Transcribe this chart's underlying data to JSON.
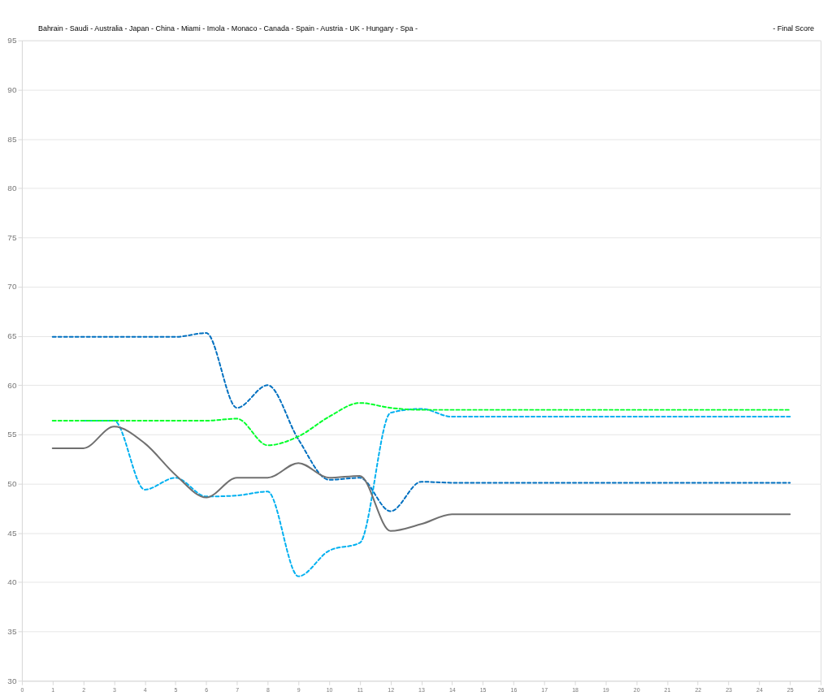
{
  "chart_data": {
    "type": "line",
    "annotations": [
      "Bahrain - Saudi - Australia -  Japan  -  China  -  Miami  -  Imola  - Monaco - Canada - Spain -   Austria    -  UK  -  Hungary  -  Spa  -",
      "- Final Score"
    ],
    "x": [
      1,
      2,
      3,
      4,
      5,
      6,
      7,
      8,
      9,
      10,
      11,
      12,
      13,
      14,
      15,
      16,
      17,
      18,
      19,
      20,
      21,
      22,
      23,
      24,
      25
    ],
    "series": [
      {
        "color": "#0070c0",
        "line_style": "dashed",
        "values": [
          64.9,
          64.9,
          64.9,
          64.9,
          64.9,
          65.3,
          57.7,
          60.0,
          54.5,
          50.4,
          50.6,
          47.2,
          50.2,
          50.1,
          50.1,
          50.1,
          50.1,
          50.1,
          50.1,
          50.1,
          50.1,
          50.1,
          50.1,
          50.1,
          50.1
        ]
      },
      {
        "color": "#00b0f0",
        "line_style": "dashed",
        "values": [
          null,
          56.4,
          56.4,
          49.4,
          50.6,
          48.7,
          48.8,
          49.2,
          40.6,
          43.2,
          44.0,
          57.2,
          57.6,
          56.8,
          56.8,
          56.8,
          56.8,
          56.8,
          56.8,
          56.8,
          56.8,
          56.8,
          56.8,
          56.8,
          56.8
        ]
      },
      {
        "color": "#00ff2a",
        "line_style": "dashed",
        "values": [
          56.4,
          56.4,
          56.4,
          56.4,
          56.4,
          56.4,
          56.6,
          53.9,
          54.8,
          56.8,
          58.2,
          57.7,
          57.5,
          57.5,
          57.5,
          57.5,
          57.5,
          57.5,
          57.5,
          57.5,
          57.5,
          57.5,
          57.5,
          57.5,
          57.5
        ]
      },
      {
        "color": "#707070",
        "line_style": "solid",
        "values": [
          53.6,
          53.6,
          55.8,
          54.1,
          50.9,
          48.6,
          50.6,
          50.6,
          52.1,
          50.6,
          50.8,
          45.2,
          45.9,
          46.9,
          46.9,
          46.9,
          46.9,
          46.9,
          46.9,
          46.9,
          46.9,
          46.9,
          46.9,
          46.9,
          46.9
        ]
      }
    ],
    "xlim": [
      0,
      26
    ],
    "xticks": [
      0,
      1,
      2,
      3,
      4,
      5,
      6,
      7,
      8,
      9,
      10,
      11,
      12,
      13,
      14,
      15,
      16,
      17,
      18,
      19,
      20,
      21,
      22,
      23,
      24,
      25,
      26
    ],
    "ylim": [
      30,
      95
    ],
    "yticks": [
      30,
      35,
      40,
      45,
      50,
      55,
      60,
      65,
      70,
      75,
      80,
      85,
      90,
      95
    ],
    "grid": "y",
    "marker": "none"
  }
}
